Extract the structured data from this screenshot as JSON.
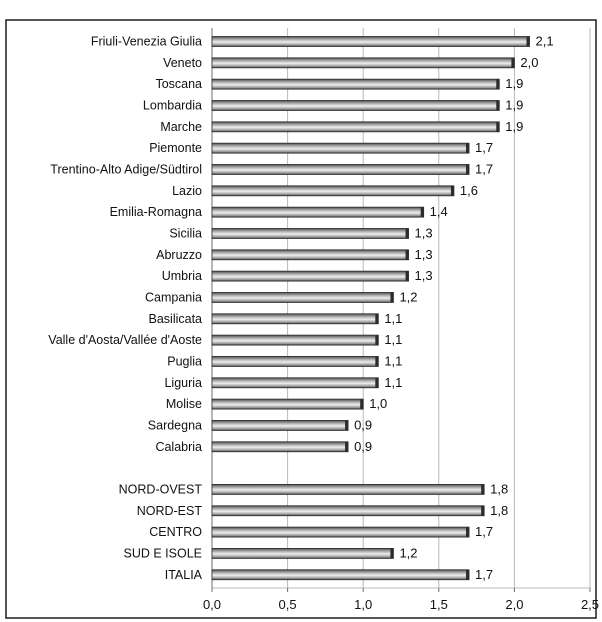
{
  "chart_data": {
    "type": "bar",
    "orientation": "horizontal",
    "categories": [
      "Friuli-Venezia Giulia",
      "Veneto",
      "Toscana",
      "Lombardia",
      "Marche",
      "Piemonte",
      "Trentino-Alto Adige/Südtirol",
      "Lazio",
      "Emilia-Romagna",
      "Sicilia",
      "Abruzzo",
      "Umbria",
      "Campania",
      "Basilicata",
      "Valle d'Aosta/Vallée d'Aoste",
      "Puglia",
      "Liguria",
      "Molise",
      "Sardegna",
      "Calabria",
      "NORD-OVEST",
      "NORD-EST",
      "CENTRO",
      "SUD E ISOLE",
      "ITALIA"
    ],
    "values": [
      2.1,
      2.0,
      1.9,
      1.9,
      1.9,
      1.7,
      1.7,
      1.6,
      1.4,
      1.3,
      1.3,
      1.3,
      1.2,
      1.1,
      1.1,
      1.1,
      1.1,
      1.0,
      0.9,
      0.9,
      1.8,
      1.8,
      1.7,
      1.2,
      1.7
    ],
    "value_labels": [
      "2,1",
      "2,0",
      "1,9",
      "1,9",
      "1,9",
      "1,7",
      "1,7",
      "1,6",
      "1,4",
      "1,3",
      "1,3",
      "1,3",
      "1,2",
      "1,1",
      "1,1",
      "1,1",
      "1,1",
      "1,0",
      "0,9",
      "0,9",
      "1,8",
      "1,8",
      "1,7",
      "1,2",
      "1,7"
    ],
    "gap_before_index": 20,
    "xlim": [
      0,
      2.5
    ],
    "x_ticks": [
      0,
      0.5,
      1.0,
      1.5,
      2.0,
      2.5
    ],
    "x_tick_labels": [
      "0,0",
      "0,5",
      "1,0",
      "1,5",
      "2,0",
      "2,5"
    ],
    "grid": true,
    "colors": {
      "bar_dark": "#4e4e4e",
      "bar_mid": "#a9a9a9",
      "bar_light": "#eeeeee",
      "bar_edge": "#2c2c2c",
      "grid": "#b8b8b8",
      "axis": "#6e6e6e",
      "frame": "#1c1c1c"
    }
  }
}
